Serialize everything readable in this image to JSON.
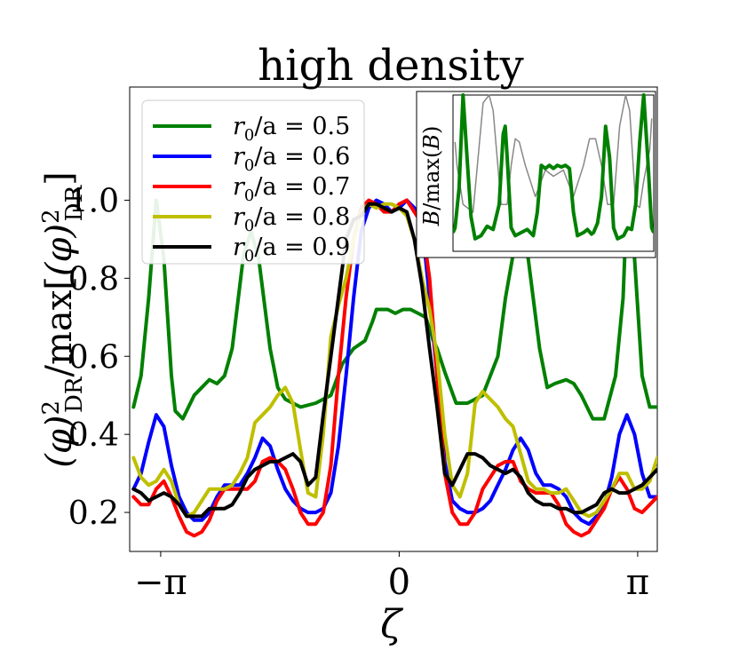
{
  "chart_data": {
    "type": "line",
    "title": "high density",
    "xlabel": "ζ",
    "ylabel": "(φ)²_DR / max[(φ)²_DR]",
    "ylabel_parts": {
      "phi": "(φ)",
      "sup": "2",
      "sub": "DR",
      "slash": "/max[",
      "close": "]"
    },
    "xlim": [
      -3.55,
      3.4
    ],
    "ylim": [
      0.1,
      1.29
    ],
    "xticks": [
      {
        "value": -3.14159,
        "label": "−π"
      },
      {
        "value": 0,
        "label": "0"
      },
      {
        "value": 3.14159,
        "label": "π"
      }
    ],
    "yticks": [
      {
        "value": 0.2,
        "label": "0.2"
      },
      {
        "value": 0.4,
        "label": "0.4"
      },
      {
        "value": 0.6,
        "label": "0.6"
      },
      {
        "value": 0.8,
        "label": "0.8"
      },
      {
        "value": 1.0,
        "label": "1.0"
      }
    ],
    "legend_position": "top-left",
    "series": [
      {
        "name": "r0/a = 0.5",
        "lhs": "r",
        "sub": "0",
        "rhs": "/a = 0.5",
        "color": "#008000",
        "x": [
          -3.5,
          -3.4,
          -3.3,
          -3.2,
          -3.1,
          -3.0,
          -2.95,
          -2.85,
          -2.7,
          -2.5,
          -2.4,
          -2.3,
          -2.2,
          -2.05,
          -1.95,
          -1.85,
          -1.7,
          -1.6,
          -1.5,
          -1.4,
          -1.3,
          -1.1,
          -0.9,
          -0.75,
          -0.6,
          -0.45,
          -0.35,
          -0.3,
          -0.25,
          -0.15,
          -0.05,
          0.05,
          0.15,
          0.25,
          0.35,
          0.45,
          0.5,
          0.6,
          0.75,
          0.9,
          1.1,
          1.3,
          1.4,
          1.5,
          1.6,
          1.7,
          1.85,
          1.95,
          2.05,
          2.2,
          2.3,
          2.4,
          2.55,
          2.7,
          2.85,
          2.95,
          3.0,
          3.1,
          3.2,
          3.3,
          3.4
        ],
        "y": [
          0.47,
          0.55,
          0.75,
          1.0,
          0.85,
          0.55,
          0.46,
          0.44,
          0.5,
          0.54,
          0.53,
          0.55,
          0.62,
          0.86,
          0.92,
          0.85,
          0.62,
          0.52,
          0.49,
          0.48,
          0.47,
          0.48,
          0.5,
          0.58,
          0.62,
          0.64,
          0.69,
          0.72,
          0.72,
          0.72,
          0.71,
          0.72,
          0.72,
          0.71,
          0.7,
          0.64,
          0.62,
          0.56,
          0.48,
          0.48,
          0.5,
          0.6,
          0.75,
          0.86,
          0.93,
          0.85,
          0.62,
          0.52,
          0.53,
          0.54,
          0.53,
          0.5,
          0.44,
          0.44,
          0.55,
          0.75,
          1.0,
          0.85,
          0.55,
          0.47,
          0.47
        ]
      },
      {
        "name": "r0/a = 0.6",
        "lhs": "r",
        "sub": "0",
        "rhs": "/a = 0.6",
        "color": "#0000ff",
        "x": [
          -3.5,
          -3.4,
          -3.3,
          -3.2,
          -3.1,
          -3.0,
          -2.9,
          -2.8,
          -2.7,
          -2.6,
          -2.5,
          -2.4,
          -2.3,
          -2.2,
          -2.1,
          -2.0,
          -1.9,
          -1.8,
          -1.7,
          -1.6,
          -1.5,
          -1.4,
          -1.3,
          -1.2,
          -1.1,
          -1.0,
          -0.9,
          -0.8,
          -0.7,
          -0.6,
          -0.5,
          -0.4,
          -0.3,
          -0.2,
          -0.1,
          0.0,
          0.1,
          0.2,
          0.3,
          0.4,
          0.5,
          0.6,
          0.7,
          0.8,
          0.9,
          1.0,
          1.1,
          1.2,
          1.3,
          1.4,
          1.5,
          1.6,
          1.7,
          1.8,
          1.9,
          2.0,
          2.1,
          2.2,
          2.3,
          2.4,
          2.5,
          2.6,
          2.7,
          2.8,
          2.9,
          3.0,
          3.1,
          3.2,
          3.3,
          3.4
        ],
        "y": [
          0.26,
          0.3,
          0.38,
          0.45,
          0.42,
          0.32,
          0.24,
          0.2,
          0.18,
          0.18,
          0.2,
          0.24,
          0.27,
          0.27,
          0.27,
          0.3,
          0.34,
          0.39,
          0.37,
          0.31,
          0.26,
          0.23,
          0.21,
          0.2,
          0.2,
          0.21,
          0.25,
          0.37,
          0.55,
          0.75,
          0.92,
          0.98,
          1.0,
          0.99,
          0.97,
          0.98,
          1.0,
          0.98,
          0.94,
          0.75,
          0.55,
          0.33,
          0.23,
          0.21,
          0.2,
          0.2,
          0.21,
          0.23,
          0.27,
          0.31,
          0.36,
          0.39,
          0.36,
          0.3,
          0.27,
          0.27,
          0.26,
          0.24,
          0.2,
          0.18,
          0.17,
          0.19,
          0.22,
          0.29,
          0.4,
          0.45,
          0.4,
          0.3,
          0.24,
          0.24
        ]
      },
      {
        "name": "r0/a = 0.7",
        "lhs": "r",
        "sub": "0",
        "rhs": "/a = 0.7",
        "color": "#ff0000",
        "x": [
          -3.5,
          -3.4,
          -3.3,
          -3.2,
          -3.1,
          -3.0,
          -2.9,
          -2.8,
          -2.7,
          -2.6,
          -2.5,
          -2.4,
          -2.3,
          -2.2,
          -2.1,
          -2.0,
          -1.9,
          -1.8,
          -1.7,
          -1.6,
          -1.5,
          -1.4,
          -1.3,
          -1.2,
          -1.1,
          -1.0,
          -0.9,
          -0.8,
          -0.7,
          -0.6,
          -0.5,
          -0.4,
          -0.3,
          -0.2,
          -0.1,
          0.0,
          0.1,
          0.2,
          0.3,
          0.4,
          0.5,
          0.6,
          0.7,
          0.8,
          0.9,
          1.0,
          1.1,
          1.2,
          1.3,
          1.4,
          1.5,
          1.6,
          1.7,
          1.8,
          1.9,
          2.0,
          2.1,
          2.2,
          2.3,
          2.4,
          2.5,
          2.6,
          2.7,
          2.8,
          2.9,
          3.0,
          3.1,
          3.2,
          3.3,
          3.4
        ],
        "y": [
          0.24,
          0.22,
          0.22,
          0.26,
          0.28,
          0.24,
          0.19,
          0.15,
          0.14,
          0.15,
          0.18,
          0.23,
          0.26,
          0.26,
          0.26,
          0.26,
          0.28,
          0.33,
          0.34,
          0.33,
          0.31,
          0.26,
          0.2,
          0.17,
          0.17,
          0.2,
          0.32,
          0.55,
          0.75,
          0.9,
          0.98,
          1.0,
          0.99,
          0.97,
          0.97,
          0.99,
          1.0,
          0.97,
          0.94,
          0.8,
          0.55,
          0.3,
          0.2,
          0.17,
          0.17,
          0.2,
          0.26,
          0.29,
          0.32,
          0.33,
          0.33,
          0.28,
          0.26,
          0.25,
          0.25,
          0.25,
          0.22,
          0.17,
          0.15,
          0.14,
          0.15,
          0.18,
          0.21,
          0.26,
          0.29,
          0.26,
          0.21,
          0.2,
          0.22,
          0.24
        ]
      },
      {
        "name": "r0/a = 0.8",
        "lhs": "r",
        "sub": "0",
        "rhs": "/a = 0.8",
        "color": "#bfbf00",
        "x": [
          -3.5,
          -3.4,
          -3.3,
          -3.2,
          -3.1,
          -3.0,
          -2.9,
          -2.8,
          -2.7,
          -2.6,
          -2.5,
          -2.4,
          -2.3,
          -2.2,
          -2.1,
          -2.0,
          -1.9,
          -1.8,
          -1.7,
          -1.6,
          -1.5,
          -1.4,
          -1.3,
          -1.2,
          -1.1,
          -1.0,
          -0.9,
          -0.8,
          -0.7,
          -0.6,
          -0.5,
          -0.4,
          -0.3,
          -0.2,
          -0.1,
          0.0,
          0.1,
          0.2,
          0.3,
          0.4,
          0.5,
          0.6,
          0.7,
          0.8,
          0.9,
          1.0,
          1.1,
          1.2,
          1.3,
          1.4,
          1.5,
          1.6,
          1.7,
          1.8,
          1.9,
          2.0,
          2.1,
          2.2,
          2.3,
          2.4,
          2.5,
          2.6,
          2.7,
          2.8,
          2.9,
          3.0,
          3.1,
          3.2,
          3.3,
          3.4
        ],
        "y": [
          0.34,
          0.29,
          0.27,
          0.28,
          0.31,
          0.28,
          0.22,
          0.19,
          0.2,
          0.23,
          0.26,
          0.26,
          0.26,
          0.27,
          0.3,
          0.34,
          0.43,
          0.45,
          0.47,
          0.5,
          0.52,
          0.48,
          0.36,
          0.25,
          0.24,
          0.4,
          0.65,
          0.73,
          0.8,
          0.9,
          0.97,
          0.99,
          0.98,
          0.99,
          0.99,
          0.98,
          0.96,
          0.9,
          0.8,
          0.72,
          0.6,
          0.4,
          0.27,
          0.24,
          0.3,
          0.48,
          0.51,
          0.49,
          0.47,
          0.44,
          0.42,
          0.35,
          0.28,
          0.26,
          0.26,
          0.25,
          0.25,
          0.26,
          0.23,
          0.2,
          0.19,
          0.2,
          0.23,
          0.26,
          0.3,
          0.3,
          0.26,
          0.26,
          0.28,
          0.34
        ]
      },
      {
        "name": "r0/a = 0.9",
        "lhs": "r",
        "sub": "0",
        "rhs": "/a = 0.9",
        "color": "#000000",
        "x": [
          -3.5,
          -3.4,
          -3.3,
          -3.2,
          -3.1,
          -3.0,
          -2.9,
          -2.8,
          -2.7,
          -2.6,
          -2.5,
          -2.4,
          -2.3,
          -2.2,
          -2.1,
          -2.0,
          -1.9,
          -1.8,
          -1.7,
          -1.6,
          -1.5,
          -1.4,
          -1.3,
          -1.2,
          -1.1,
          -1.0,
          -0.9,
          -0.8,
          -0.7,
          -0.6,
          -0.5,
          -0.4,
          -0.3,
          -0.2,
          -0.1,
          0.0,
          0.1,
          0.2,
          0.3,
          0.4,
          0.5,
          0.6,
          0.7,
          0.8,
          0.9,
          1.0,
          1.1,
          1.2,
          1.3,
          1.4,
          1.5,
          1.6,
          1.7,
          1.8,
          1.9,
          2.0,
          2.1,
          2.2,
          2.3,
          2.4,
          2.5,
          2.6,
          2.7,
          2.8,
          2.9,
          3.0,
          3.1,
          3.2,
          3.3,
          3.4
        ],
        "y": [
          0.26,
          0.25,
          0.23,
          0.24,
          0.25,
          0.24,
          0.22,
          0.19,
          0.19,
          0.19,
          0.21,
          0.21,
          0.21,
          0.22,
          0.25,
          0.29,
          0.31,
          0.32,
          0.33,
          0.33,
          0.34,
          0.35,
          0.33,
          0.27,
          0.29,
          0.45,
          0.6,
          0.75,
          0.9,
          0.95,
          0.96,
          0.99,
          0.99,
          0.98,
          0.97,
          0.98,
          0.97,
          0.9,
          0.78,
          0.62,
          0.47,
          0.3,
          0.27,
          0.31,
          0.35,
          0.35,
          0.34,
          0.32,
          0.31,
          0.3,
          0.31,
          0.29,
          0.25,
          0.23,
          0.22,
          0.22,
          0.21,
          0.21,
          0.2,
          0.2,
          0.21,
          0.22,
          0.25,
          0.26,
          0.25,
          0.25,
          0.26,
          0.27,
          0.29,
          0.31
        ]
      }
    ],
    "inset": {
      "ylabel": "B/max(B)",
      "ylabel_lhs": "B",
      "ylabel_mid": "/max(",
      "ylabel_rhs": ")",
      "xlim": [
        0,
        1
      ],
      "ylim": [
        0,
        1
      ],
      "series": [
        {
          "name": "B",
          "color": "#888888",
          "x": [
            0.01,
            0.02,
            0.05,
            0.1,
            0.15,
            0.18,
            0.2,
            0.24,
            0.27,
            0.29,
            0.31,
            0.33,
            0.36,
            0.41,
            0.46,
            0.5,
            0.55,
            0.6,
            0.65,
            0.68,
            0.71,
            0.74,
            0.77,
            0.8,
            0.83,
            0.86,
            0.88,
            0.91,
            0.93,
            0.95,
            0.98,
            0.99
          ],
          "y": [
            0.7,
            0.55,
            0.3,
            0.25,
            0.95,
            1.0,
            0.9,
            0.3,
            0.3,
            0.55,
            0.72,
            0.7,
            0.55,
            0.35,
            0.52,
            0.48,
            0.52,
            0.35,
            0.55,
            0.72,
            0.72,
            0.55,
            0.3,
            0.3,
            0.8,
            1.0,
            0.9,
            0.3,
            0.28,
            0.45,
            0.65,
            0.85
          ]
        },
        {
          "name": "φ²",
          "color": "#008000",
          "x": [
            0.0,
            0.01,
            0.03,
            0.05,
            0.07,
            0.09,
            0.11,
            0.14,
            0.17,
            0.2,
            0.23,
            0.25,
            0.26,
            0.27,
            0.29,
            0.31,
            0.34,
            0.37,
            0.4,
            0.42,
            0.44,
            0.46,
            0.48,
            0.5,
            0.52,
            0.54,
            0.56,
            0.58,
            0.6,
            0.62,
            0.65,
            0.67,
            0.69,
            0.7,
            0.72,
            0.74,
            0.76,
            0.78,
            0.8,
            0.82,
            0.85,
            0.87,
            0.89,
            0.91,
            0.93,
            0.95,
            0.97,
            0.99,
            1.0
          ],
          "y": [
            0.12,
            0.15,
            0.4,
            1.0,
            0.6,
            0.22,
            0.08,
            0.1,
            0.16,
            0.14,
            0.3,
            0.75,
            0.8,
            0.6,
            0.15,
            0.1,
            0.12,
            0.14,
            0.1,
            0.25,
            0.55,
            0.53,
            0.55,
            0.53,
            0.55,
            0.54,
            0.55,
            0.53,
            0.25,
            0.1,
            0.12,
            0.14,
            0.11,
            0.12,
            0.18,
            0.35,
            0.8,
            0.6,
            0.15,
            0.08,
            0.1,
            0.15,
            0.14,
            0.3,
            0.7,
            1.0,
            0.6,
            0.15,
            0.12
          ]
        }
      ]
    }
  }
}
